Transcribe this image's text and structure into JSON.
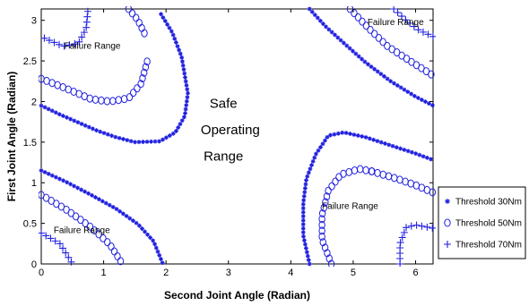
{
  "chart_data": {
    "type": "scatter",
    "xlabel": "Second Joint Angle (Radian)",
    "ylabel": "First Joint Angle (Radian)",
    "xlim": [
      0,
      6.28
    ],
    "ylim": [
      0,
      3.14
    ],
    "xticks": [
      "0",
      "1",
      "2",
      "3",
      "4",
      "5",
      "6"
    ],
    "yticks": [
      "0",
      "0.5",
      "1",
      "1.5",
      "2",
      "2.5",
      "3"
    ],
    "grid": false,
    "legend_position": "right-bottom outside",
    "colors": {
      "series": "#2020e0",
      "axes": "#000000"
    },
    "annotations": [
      {
        "text": "Failure Range",
        "x": 0.82,
        "y": 2.65,
        "size": "small"
      },
      {
        "text": "Failure Range",
        "x": 5.68,
        "y": 2.94,
        "size": "small"
      },
      {
        "text": "Failure Range",
        "x": 4.95,
        "y": 0.68,
        "size": "small"
      },
      {
        "text": "Failure Range",
        "x": 0.65,
        "y": 0.38,
        "size": "small"
      },
      {
        "text": "Safe",
        "x": 2.92,
        "y": 1.92,
        "size": "large"
      },
      {
        "text": "Operating",
        "x": 3.03,
        "y": 1.6,
        "size": "large"
      },
      {
        "text": "Range",
        "x": 2.92,
        "y": 1.27,
        "size": "large"
      }
    ],
    "series": [
      {
        "name": "Threshold 30Nm",
        "marker": "star",
        "curves": [
          [
            [
              0.0,
              1.95
            ],
            [
              0.3,
              1.84
            ],
            [
              0.6,
              1.74
            ],
            [
              0.9,
              1.64
            ],
            [
              1.2,
              1.56
            ],
            [
              1.5,
              1.5
            ],
            [
              1.9,
              1.51
            ],
            [
              2.15,
              1.62
            ],
            [
              2.3,
              1.82
            ],
            [
              2.35,
              2.1
            ],
            [
              2.25,
              2.55
            ],
            [
              2.1,
              2.85
            ],
            [
              1.9,
              3.1
            ]
          ],
          [
            [
              0.0,
              1.15
            ],
            [
              0.4,
              1.01
            ],
            [
              0.8,
              0.85
            ],
            [
              1.2,
              0.68
            ],
            [
              1.55,
              0.49
            ],
            [
              1.8,
              0.28
            ],
            [
              1.95,
              0.0
            ]
          ],
          [
            [
              4.3,
              0.0
            ],
            [
              4.2,
              0.35
            ],
            [
              4.2,
              0.75
            ],
            [
              4.25,
              1.05
            ],
            [
              4.4,
              1.35
            ],
            [
              4.6,
              1.58
            ],
            [
              4.85,
              1.62
            ],
            [
              5.2,
              1.56
            ],
            [
              5.6,
              1.46
            ],
            [
              6.0,
              1.36
            ],
            [
              6.28,
              1.28
            ]
          ],
          [
            [
              4.3,
              3.14
            ],
            [
              4.55,
              2.93
            ],
            [
              4.85,
              2.72
            ],
            [
              5.2,
              2.48
            ],
            [
              5.6,
              2.25
            ],
            [
              6.0,
              2.06
            ],
            [
              6.28,
              1.95
            ]
          ]
        ]
      },
      {
        "name": "Threshold 50Nm",
        "marker": "circle",
        "curves": [
          [
            [
              0.0,
              2.28
            ],
            [
              0.4,
              2.16
            ],
            [
              0.8,
              2.03
            ],
            [
              1.1,
              2.0
            ],
            [
              1.4,
              2.04
            ],
            [
              1.6,
              2.22
            ],
            [
              1.7,
              2.5
            ]
          ],
          [
            [
              1.4,
              3.14
            ],
            [
              1.55,
              3.0
            ],
            [
              1.68,
              2.8
            ]
          ],
          [
            [
              0.0,
              0.85
            ],
            [
              0.4,
              0.67
            ],
            [
              0.8,
              0.45
            ],
            [
              1.1,
              0.24
            ],
            [
              1.3,
              0.0
            ]
          ],
          [
            [
              4.65,
              0.0
            ],
            [
              4.5,
              0.3
            ],
            [
              4.5,
              0.6
            ],
            [
              4.6,
              0.9
            ],
            [
              4.8,
              1.1
            ],
            [
              5.1,
              1.17
            ],
            [
              5.3,
              1.14
            ]
          ],
          [
            [
              5.3,
              1.14
            ],
            [
              5.7,
              1.05
            ],
            [
              6.0,
              0.97
            ],
            [
              6.28,
              0.88
            ]
          ],
          [
            [
              4.95,
              3.14
            ],
            [
              5.25,
              2.9
            ],
            [
              5.55,
              2.68
            ],
            [
              5.95,
              2.48
            ],
            [
              6.28,
              2.32
            ]
          ]
        ]
      },
      {
        "name": "Threshold 70Nm",
        "marker": "plus",
        "curves": [
          [
            [
              0.05,
              2.78
            ],
            [
              0.35,
              2.68
            ],
            [
              0.6,
              2.72
            ],
            [
              0.72,
              2.9
            ],
            [
              0.75,
              3.14
            ]
          ],
          [
            [
              0.0,
              0.38
            ],
            [
              0.3,
              0.25
            ],
            [
              0.5,
              0.0
            ]
          ],
          [
            [
              5.75,
              0.0
            ],
            [
              5.75,
              0.25
            ],
            [
              5.85,
              0.45
            ],
            [
              6.0,
              0.48
            ],
            [
              6.28,
              0.44
            ]
          ],
          [
            [
              5.65,
              3.14
            ],
            [
              5.85,
              3.0
            ],
            [
              6.05,
              2.88
            ],
            [
              6.28,
              2.8
            ]
          ]
        ]
      }
    ]
  }
}
